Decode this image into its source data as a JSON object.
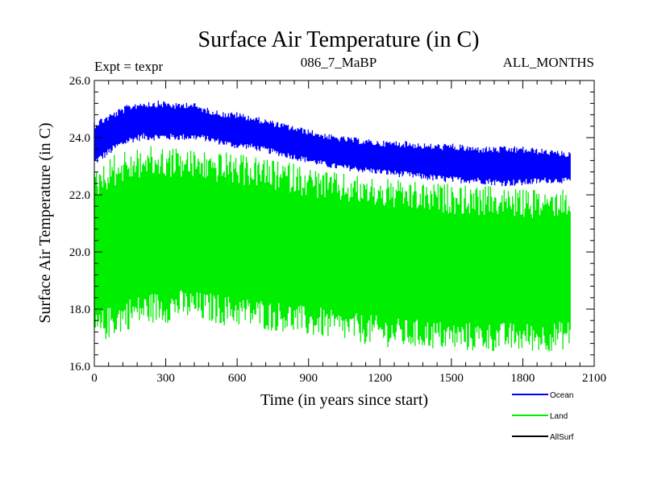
{
  "chart_data": {
    "type": "line",
    "title": "Surface Air Temperature (in C)",
    "subtitle_left": "Expt = texpr",
    "subtitle_center": "086_7_MaBP",
    "subtitle_right": "ALL_MONTHS",
    "xlabel": "Time (in years since start)",
    "ylabel": "Surface Air Temperature (in C)",
    "xlim": [
      0,
      2100
    ],
    "ylim": [
      16,
      26
    ],
    "x_ticks": [
      0,
      300,
      600,
      900,
      1200,
      1500,
      1800,
      2100
    ],
    "x_tick_labels": [
      "0",
      "300",
      "600",
      "900",
      "1200",
      "1500",
      "1800",
      "2100"
    ],
    "y_ticks": [
      16,
      18,
      20,
      22,
      24,
      26
    ],
    "y_tick_labels": [
      "16.0",
      "18.0",
      "20.0",
      "22.0",
      "24.0",
      "26.0"
    ],
    "x_minor_step": 60,
    "y_minor_step": 0.4,
    "grid": false,
    "series": [
      {
        "name": "Ocean",
        "color": "#0000ff",
        "x": [
          0,
          50,
          100,
          150,
          200,
          250,
          300,
          350,
          400,
          450,
          500,
          550,
          600,
          650,
          700,
          750,
          800,
          850,
          900,
          950,
          1000,
          1100,
          1200,
          1300,
          1400,
          1500,
          1600,
          1700,
          1800,
          1900,
          2000
        ],
        "min": [
          23.0,
          23.3,
          23.6,
          23.8,
          23.9,
          23.9,
          23.9,
          23.9,
          23.9,
          23.9,
          23.8,
          23.7,
          23.6,
          23.6,
          23.5,
          23.4,
          23.3,
          23.2,
          23.1,
          23.0,
          22.9,
          22.8,
          22.7,
          22.6,
          22.5,
          22.4,
          22.4,
          22.3,
          22.3,
          22.4,
          22.4
        ],
        "max": [
          24.6,
          24.8,
          25.0,
          25.2,
          25.3,
          25.3,
          25.3,
          25.2,
          25.3,
          25.1,
          25.0,
          24.9,
          24.9,
          24.8,
          24.7,
          24.6,
          24.5,
          24.4,
          24.3,
          24.2,
          24.1,
          24.0,
          23.9,
          23.9,
          23.8,
          23.8,
          23.7,
          23.7,
          23.7,
          23.6,
          23.5
        ]
      },
      {
        "name": "Land",
        "color": "#00ee00",
        "x": [
          0,
          50,
          100,
          150,
          200,
          250,
          300,
          350,
          400,
          450,
          500,
          550,
          600,
          650,
          700,
          750,
          800,
          850,
          900,
          950,
          1000,
          1100,
          1200,
          1300,
          1400,
          1500,
          1600,
          1700,
          1800,
          1900,
          2000
        ],
        "min": [
          16.7,
          16.9,
          17.1,
          17.3,
          17.4,
          17.5,
          17.5,
          17.6,
          17.6,
          17.5,
          17.5,
          17.4,
          17.4,
          17.3,
          17.3,
          17.2,
          17.2,
          17.1,
          17.0,
          17.0,
          16.9,
          16.8,
          16.7,
          16.6,
          16.6,
          16.5,
          16.5,
          16.5,
          16.5,
          16.5,
          16.6
        ],
        "max": [
          22.9,
          23.3,
          23.5,
          23.6,
          23.7,
          23.7,
          23.7,
          23.7,
          23.6,
          23.6,
          23.5,
          23.5,
          23.4,
          23.4,
          23.3,
          23.2,
          23.2,
          23.1,
          23.0,
          22.9,
          22.8,
          22.7,
          22.6,
          22.5,
          22.4,
          22.4,
          22.3,
          22.3,
          22.2,
          22.2,
          22.3
        ]
      },
      {
        "name": "AllSurf",
        "color": "#000000",
        "x": [],
        "min": [],
        "max": []
      }
    ],
    "legend_position": "bottom-right"
  }
}
